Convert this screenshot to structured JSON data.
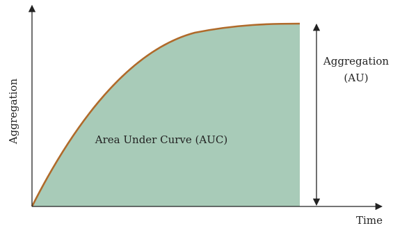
{
  "labels": {
    "y_axis": "Aggregation",
    "x_axis": "Time",
    "area": "Area Under Curve (AUC)",
    "measure_line1": "Aggregation",
    "measure_line2": "(AU)"
  },
  "colors": {
    "fill": "#a8cbb8",
    "curve": "#b06a2a",
    "axes": "#222222"
  }
}
